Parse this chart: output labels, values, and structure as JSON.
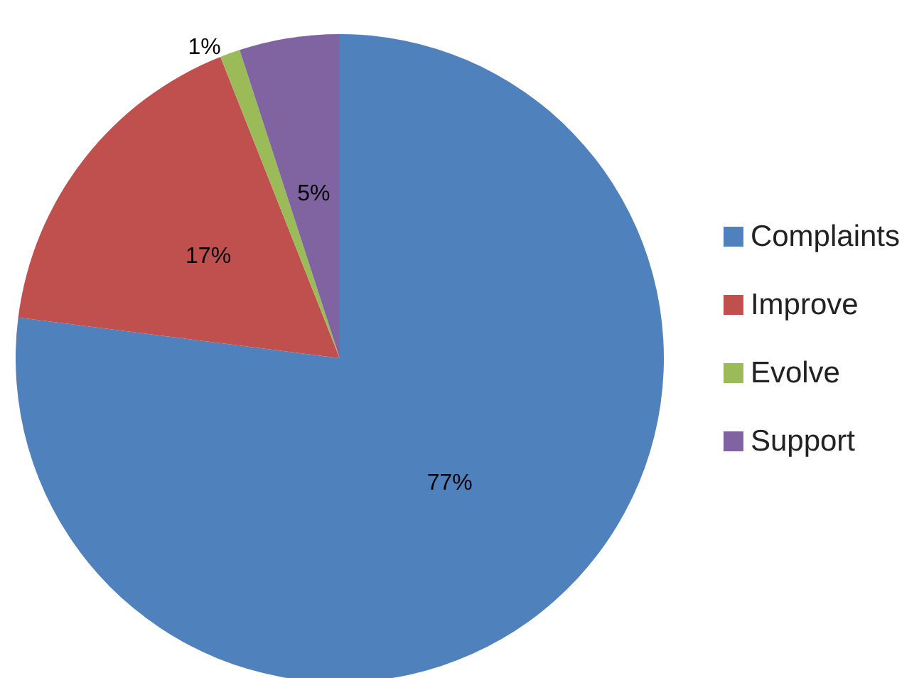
{
  "chart_data": {
    "type": "pie",
    "categories": [
      "Complaints",
      "Improve",
      "Evolve",
      "Support"
    ],
    "values": [
      77,
      17,
      1,
      5
    ],
    "colors": [
      "#4f81bd",
      "#c0504d",
      "#9bbb59",
      "#8064a2"
    ],
    "value_labels": [
      "77%",
      "17%",
      "1%",
      "5%"
    ],
    "legend": "right"
  }
}
